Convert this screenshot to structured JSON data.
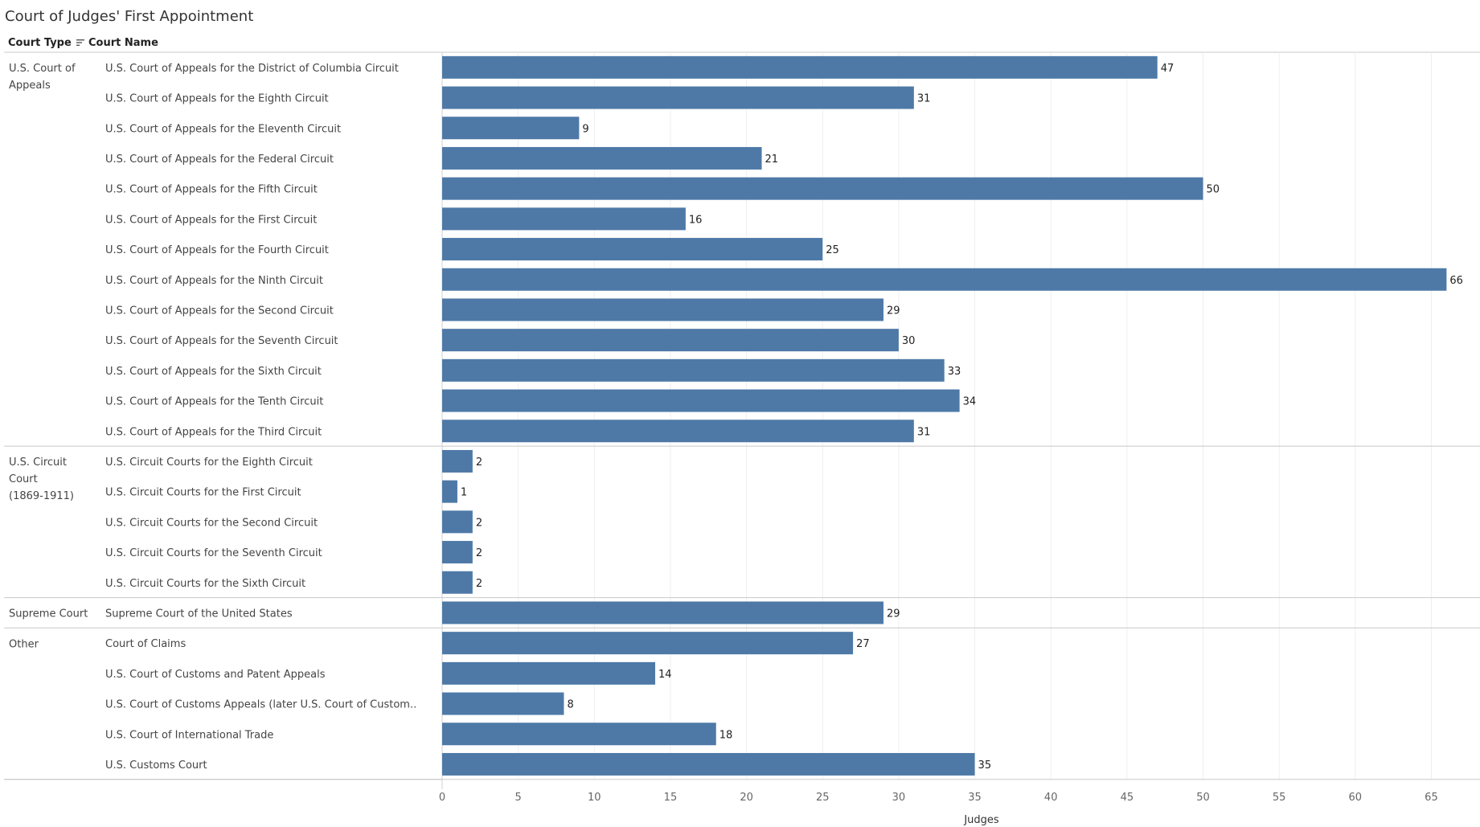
{
  "header": {
    "court_type_label": "Court Type",
    "court_name_label": "Court Name"
  },
  "chart_data": {
    "type": "bar",
    "orientation": "horizontal",
    "title": "Court of Judges' First Appointment",
    "xlabel": "Judges",
    "ylabel": "",
    "xlim": [
      0,
      68
    ],
    "xticks": [
      0,
      5,
      10,
      15,
      20,
      25,
      30,
      35,
      40,
      45,
      50,
      55,
      60,
      65
    ],
    "bar_color": "#4e79a7",
    "groups": [
      {
        "name": "U.S. Court of Appeals",
        "label_lines": [
          "U.S. Court of",
          "Appeals"
        ],
        "rows": [
          {
            "name": "U.S. Court of Appeals for the District of Columbia Circuit",
            "value": 47
          },
          {
            "name": "U.S. Court of Appeals for the Eighth Circuit",
            "value": 31
          },
          {
            "name": "U.S. Court of Appeals for the Eleventh Circuit",
            "value": 9
          },
          {
            "name": "U.S. Court of Appeals for the Federal Circuit",
            "value": 21
          },
          {
            "name": "U.S. Court of Appeals for the Fifth Circuit",
            "value": 50
          },
          {
            "name": "U.S. Court of Appeals for the First Circuit",
            "value": 16
          },
          {
            "name": "U.S. Court of Appeals for the Fourth Circuit",
            "value": 25
          },
          {
            "name": "U.S. Court of Appeals for the Ninth Circuit",
            "value": 66
          },
          {
            "name": "U.S. Court of Appeals for the Second Circuit",
            "value": 29
          },
          {
            "name": "U.S. Court of Appeals for the Seventh Circuit",
            "value": 30
          },
          {
            "name": "U.S. Court of Appeals for the Sixth Circuit",
            "value": 33
          },
          {
            "name": "U.S. Court of Appeals for the Tenth Circuit",
            "value": 34
          },
          {
            "name": "U.S. Court of Appeals for the Third Circuit",
            "value": 31
          }
        ]
      },
      {
        "name": "U.S. Circuit Court (1869-1911)",
        "label_lines": [
          "U.S. Circuit",
          "Court",
          "(1869-1911)"
        ],
        "rows": [
          {
            "name": "U.S. Circuit Courts for the Eighth Circuit",
            "value": 2
          },
          {
            "name": "U.S. Circuit Courts for the First Circuit",
            "value": 1
          },
          {
            "name": "U.S. Circuit Courts for the Second Circuit",
            "value": 2
          },
          {
            "name": "U.S. Circuit Courts for the Seventh Circuit",
            "value": 2
          },
          {
            "name": "U.S. Circuit Courts for the Sixth Circuit",
            "value": 2
          }
        ]
      },
      {
        "name": "Supreme Court",
        "label_lines": [
          "Supreme Court"
        ],
        "rows": [
          {
            "name": "Supreme Court of the United States",
            "value": 29
          }
        ]
      },
      {
        "name": "Other",
        "label_lines": [
          "Other"
        ],
        "rows": [
          {
            "name": "Court of Claims",
            "value": 27
          },
          {
            "name": "U.S. Court of Customs and Patent Appeals",
            "value": 14
          },
          {
            "name": "U.S. Court of Customs Appeals (later U.S. Court of Custom..",
            "value": 8
          },
          {
            "name": "U.S. Court of International Trade",
            "value": 18
          },
          {
            "name": "U.S. Customs Court",
            "value": 35
          }
        ]
      }
    ]
  }
}
